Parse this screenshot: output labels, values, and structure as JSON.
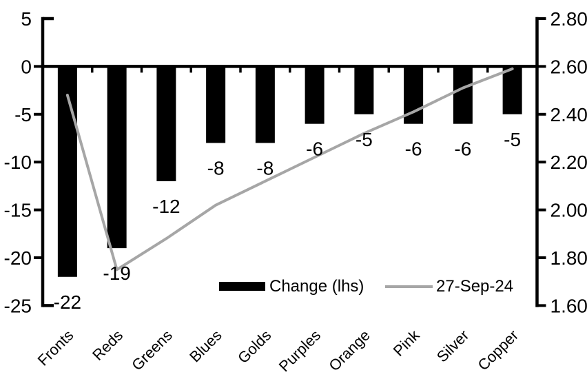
{
  "chart_data": {
    "type": "combo-bar-line",
    "title": "",
    "categories": [
      "Fronts",
      "Reds",
      "Greens",
      "Blues",
      "Golds",
      "Purples",
      "Orange",
      "Pink",
      "Silver",
      "Copper"
    ],
    "series": [
      {
        "name": "Change (lhs)",
        "type": "bar",
        "axis": "left",
        "color": "#000000",
        "values": [
          -22,
          -19,
          -12,
          -8,
          -8,
          -6,
          -5,
          -6,
          -6,
          -5
        ],
        "data_labels": [
          "-22",
          "-19",
          "-12",
          "-8",
          "-8",
          "-6",
          "-5",
          "-6",
          "-6",
          "-5"
        ]
      },
      {
        "name": "27-Sep-24",
        "type": "line",
        "axis": "right",
        "color": "#a6a6a6",
        "values": [
          2.48,
          1.75,
          1.88,
          2.02,
          2.12,
          2.22,
          2.32,
          2.41,
          2.51,
          2.59
        ]
      }
    ],
    "left_axis": {
      "min": -25,
      "max": 5,
      "step": 5,
      "tick_labels": [
        "5",
        "0",
        "-5",
        "-10",
        "-15",
        "-20",
        "-25"
      ]
    },
    "right_axis": {
      "min": 1.6,
      "max": 2.8,
      "step": 0.2,
      "tick_labels": [
        "2.80",
        "2.60",
        "2.40",
        "2.20",
        "2.00",
        "1.80",
        "1.60"
      ]
    },
    "legend": {
      "position": "inside-bottom",
      "entries": [
        "Change (lhs)",
        "27-Sep-24"
      ]
    },
    "grid": false,
    "background": "#ffffff",
    "text_color": "#000000"
  }
}
